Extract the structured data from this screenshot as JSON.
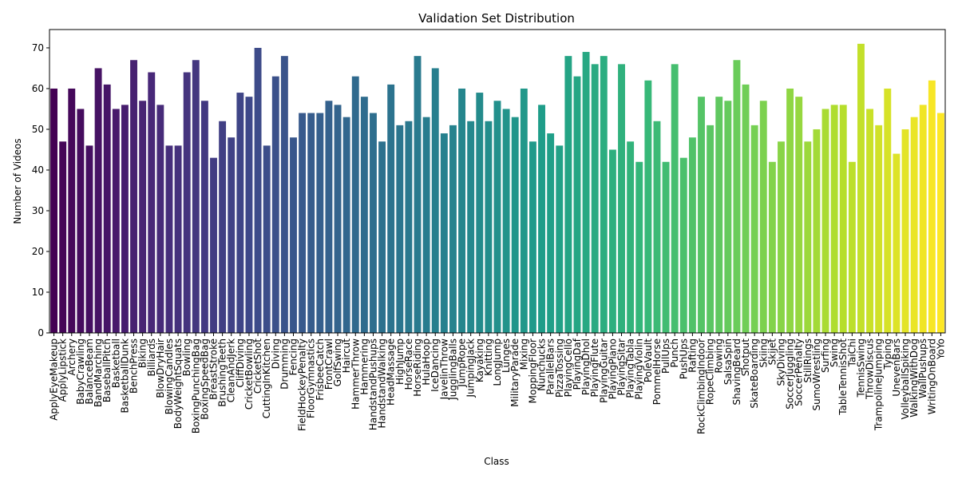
{
  "chart_data": {
    "type": "bar",
    "title": "Validation Set Distribution",
    "xlabel": "Class",
    "ylabel": "Number of Videos",
    "ylim": [
      0,
      74.5
    ],
    "yticks": [
      0,
      10,
      20,
      30,
      40,
      50,
      60,
      70
    ],
    "grid": false,
    "legend": "none",
    "palette": "viridis",
    "categories": [
      "ApplyEyeMakeup",
      "ApplyLipstick",
      "Archery",
      "BabyCrawling",
      "BalanceBeam",
      "BandMarching",
      "BaseballPitch",
      "Basketball",
      "BasketballDunk",
      "BenchPress",
      "Biking",
      "Billiards",
      "BlowDryHair",
      "BlowingCandles",
      "BodyWeightSquats",
      "Bowling",
      "BoxingPunchingBag",
      "BoxingSpeedBag",
      "BreastStroke",
      "BrushingTeeth",
      "CleanAndJerk",
      "CliffDiving",
      "CricketBowling",
      "CricketShot",
      "CuttingInKitchen",
      "Diving",
      "Drumming",
      "Fencing",
      "FieldHockeyPenalty",
      "FloorGymnastics",
      "FrisbeeCatch",
      "FrontCrawl",
      "GolfSwing",
      "Haircut",
      "HammerThrow",
      "Hammering",
      "HandstandPushups",
      "HandstandWalking",
      "HeadMassage",
      "HighJump",
      "HorseRace",
      "HorseRiding",
      "HulaHoop",
      "IceDancing",
      "JavelinThrow",
      "JugglingBalls",
      "JumpRope",
      "JumpingJack",
      "Kayaking",
      "Knitting",
      "LongJump",
      "Lunges",
      "MilitaryParade",
      "Mixing",
      "MoppingFloor",
      "Nunchucks",
      "ParallelBars",
      "PizzaTossing",
      "PlayingCello",
      "PlayingDaf",
      "PlayingDhol",
      "PlayingFlute",
      "PlayingGuitar",
      "PlayingPiano",
      "PlayingSitar",
      "PlayingTabla",
      "PlayingViolin",
      "PoleVault",
      "PommelHorse",
      "PullUps",
      "Punch",
      "PushUps",
      "Rafting",
      "RockClimbingIndoor",
      "RopeClimbing",
      "Rowing",
      "SalsaSpin",
      "ShavingBeard",
      "Shotput",
      "SkateBoarding",
      "Skiing",
      "Skijet",
      "SkyDiving",
      "SoccerJuggling",
      "SoccerPenalty",
      "StillRings",
      "SumoWrestling",
      "Surfing",
      "Swing",
      "TableTennisShot",
      "TaiChi",
      "TennisSwing",
      "ThrowDiscus",
      "TrampolineJumping",
      "Typing",
      "UnevenBars",
      "VolleyballSpiking",
      "WalkingWithDog",
      "WallPushups",
      "WritingOnBoard",
      "YoYo"
    ],
    "values": [
      60,
      47,
      60,
      55,
      46,
      65,
      61,
      55,
      56,
      67,
      57,
      64,
      56,
      46,
      46,
      64,
      67,
      57,
      43,
      52,
      48,
      59,
      58,
      70,
      46,
      63,
      68,
      48,
      54,
      54,
      54,
      57,
      56,
      53,
      63,
      58,
      54,
      47,
      61,
      51,
      52,
      68,
      53,
      65,
      49,
      51,
      60,
      52,
      59,
      52,
      57,
      55,
      53,
      60,
      47,
      56,
      49,
      46,
      68,
      63,
      69,
      66,
      68,
      45,
      66,
      47,
      42,
      62,
      52,
      42,
      66,
      43,
      48,
      58,
      51,
      58,
      57,
      67,
      61,
      51,
      57,
      42,
      47,
      60,
      58,
      47,
      50,
      55,
      56,
      56,
      42,
      71,
      55,
      51,
      60,
      44,
      50,
      53,
      56,
      62,
      54
    ]
  }
}
